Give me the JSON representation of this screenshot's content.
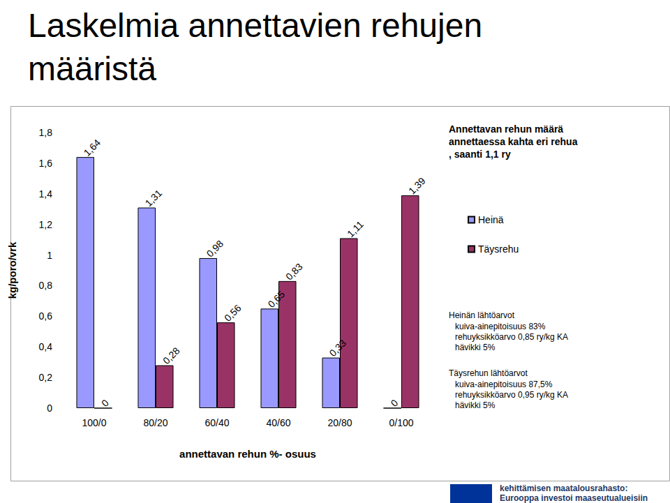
{
  "chart_data": {
    "type": "bar",
    "title": "Laskelmia annettavien rehujen määristä",
    "x_label": "annettavan rehun %- osuus",
    "y_label": "kg/poro/vrk",
    "categories": [
      "100/0",
      "80/20",
      "60/40",
      "40/60",
      "20/80",
      "0/100"
    ],
    "series": [
      {
        "name": "Heinä",
        "color": "#9999ff",
        "values": [
          1.64,
          1.31,
          0.98,
          0.65,
          0.33,
          0
        ],
        "value_labels": [
          "1,64",
          "1,31",
          "0,98",
          "0,65",
          "0,33",
          "0"
        ]
      },
      {
        "name": "Täysrehu",
        "color": "#993366",
        "values": [
          0,
          0.28,
          0.56,
          0.83,
          1.11,
          1.39
        ],
        "value_labels": [
          "0",
          "0,28",
          "0,56",
          "0,83",
          "1,11",
          "1,39"
        ]
      }
    ],
    "ylim": [
      0,
      1.8
    ],
    "yticks": [
      0,
      {
        "value": 0.2,
        "label": "0,2"
      },
      {
        "value": 0.4,
        "label": "0,4"
      },
      {
        "value": 0.6,
        "label": "0,6"
      },
      {
        "value": 0.8,
        "label": "0,8"
      },
      1,
      {
        "value": 1.2,
        "label": "1,2"
      },
      {
        "value": 1.4,
        "label": "1,4"
      },
      {
        "value": 1.6,
        "label": "1,6"
      },
      {
        "value": 1.8,
        "label": "1,8"
      }
    ],
    "grid": false,
    "legend": "right",
    "data_labels": true,
    "annotation_header": "Annettavan rehun määrä annettaessa kahta eri rehua, saanti 1,1 ry",
    "annotation_notes": [
      {
        "title": "Heinän lähtöarvot",
        "lines": [
          "kuiva-ainepitoisuus 83%",
          "rehuyksikköarvo 0,85 ry/kg KA",
          "hävikki 5%"
        ]
      },
      {
        "title": "Täysrehun lähtöarvot",
        "lines": [
          "kuiva-ainepitoisuus 87,5%",
          "rehuyksikköarvo 0,95 ry/kg KA",
          "hävikki 5%"
        ]
      }
    ],
    "footer": [
      "kehittämisen maatalousrahasto:",
      "Eurooppa investoi maaseutualueisiin"
    ]
  }
}
